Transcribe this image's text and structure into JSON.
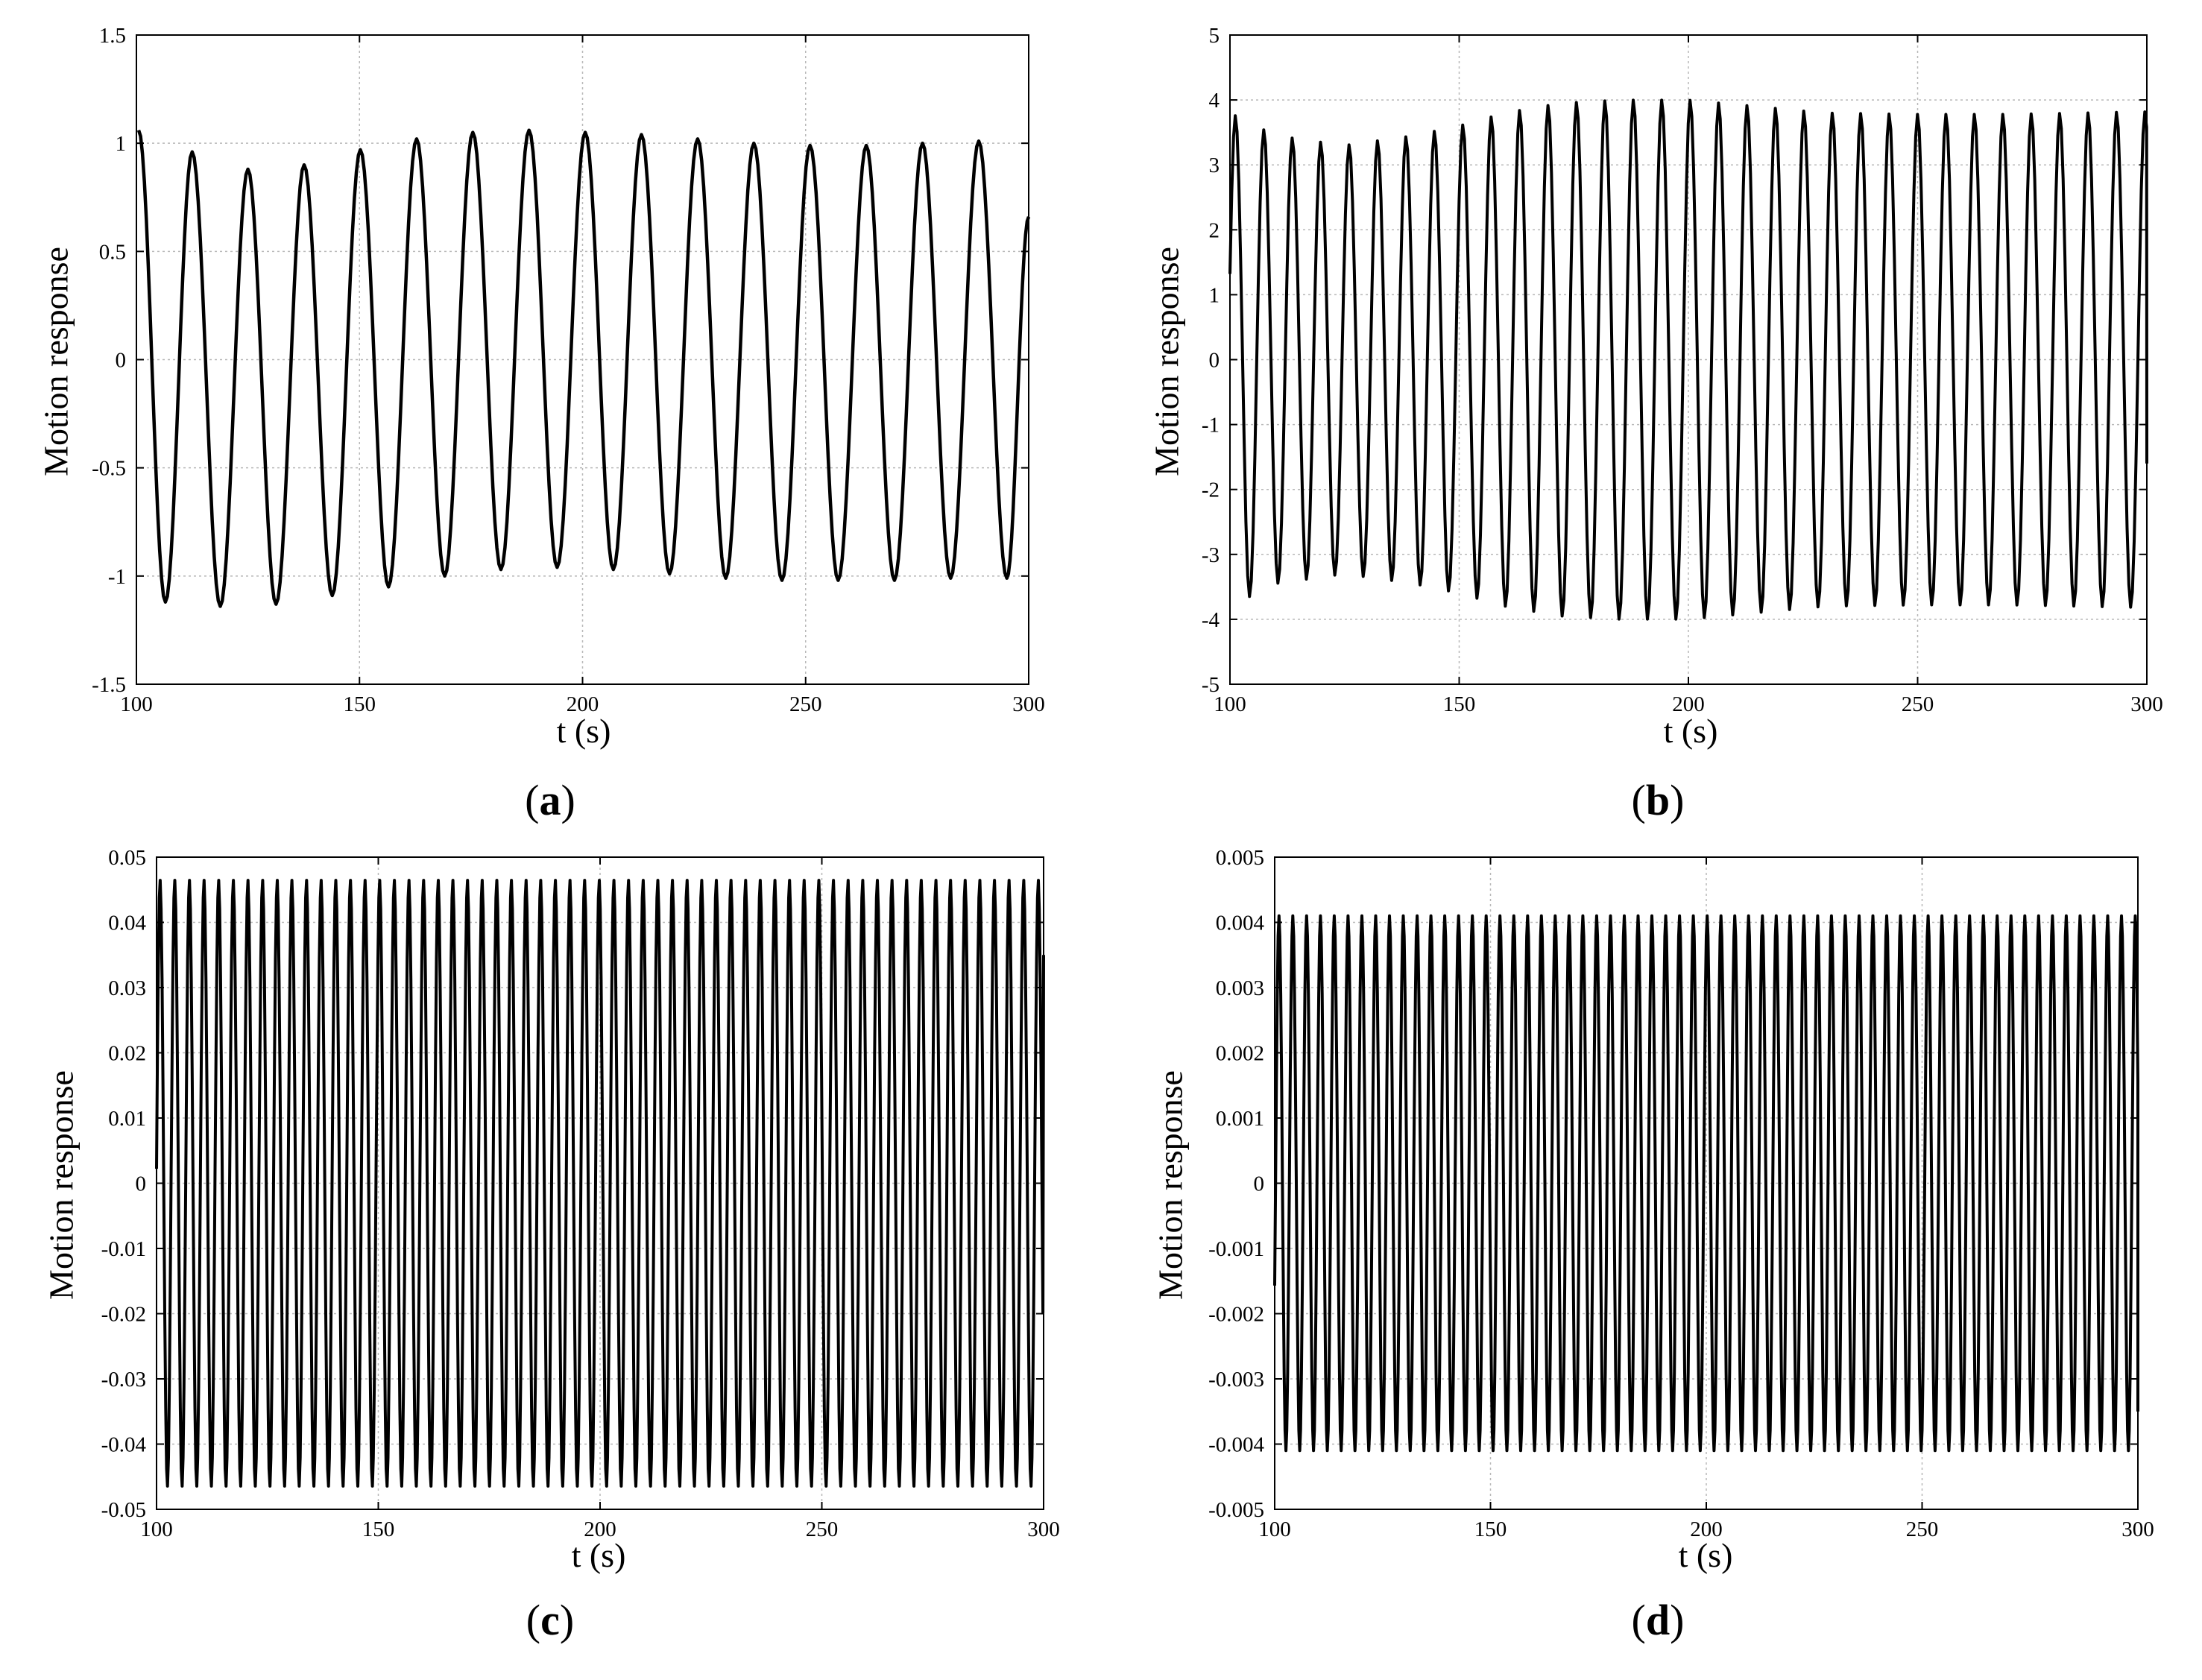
{
  "chart_data": [
    {
      "panel": "a",
      "caption": "a",
      "type": "line",
      "xlabel": "t (s)",
      "ylabel": "Motion response",
      "xlim": [
        100,
        300
      ],
      "ylim": [
        -1.5,
        1.5
      ],
      "xticks": [
        "100",
        "150",
        "200",
        "250",
        "300"
      ],
      "yticks": [
        "1.5",
        "1",
        "0.5",
        "0",
        "-0.5",
        "-1",
        "-1.5"
      ],
      "grid": true,
      "series": [
        {
          "period_s": 12.6,
          "peaks": [
            [
              100.5,
              1.06
            ],
            [
              112.5,
              0.96
            ],
            [
              125,
              0.88
            ],
            [
              137.6,
              0.9
            ],
            [
              150.2,
              0.97
            ],
            [
              162.8,
              1.02
            ],
            [
              175.4,
              1.05
            ],
            [
              188,
              1.06
            ],
            [
              200.6,
              1.05
            ],
            [
              213.2,
              1.04
            ],
            [
              225.8,
              1.02
            ],
            [
              238.4,
              1.0
            ],
            [
              251,
              0.99
            ],
            [
              263.6,
              0.99
            ],
            [
              276.2,
              1.0
            ],
            [
              288.8,
              1.01
            ]
          ],
          "troughs": [
            [
              106.5,
              -1.12
            ],
            [
              118.8,
              -1.14
            ],
            [
              131.3,
              -1.13
            ],
            [
              143.9,
              -1.09
            ],
            [
              156.5,
              -1.05
            ],
            [
              169.1,
              -1.0
            ],
            [
              181.7,
              -0.97
            ],
            [
              194.3,
              -0.96
            ],
            [
              206.9,
              -0.97
            ],
            [
              219.5,
              -0.99
            ],
            [
              232.1,
              -1.01
            ],
            [
              244.7,
              -1.02
            ],
            [
              257.3,
              -1.02
            ],
            [
              269.9,
              -1.02
            ],
            [
              282.5,
              -1.01
            ],
            [
              295.1,
              -1.01
            ]
          ],
          "end": [
            300,
            0.66
          ]
        }
      ]
    },
    {
      "panel": "b",
      "caption": "b",
      "type": "line",
      "xlabel": "t (s)",
      "ylabel": "Motion response",
      "xlim": [
        100,
        300
      ],
      "ylim": [
        -5,
        5
      ],
      "xticks": [
        "100",
        "150",
        "200",
        "250",
        "300"
      ],
      "yticks": [
        "5",
        "4",
        "3",
        "2",
        "1",
        "0",
        "-1",
        "-2",
        "-3",
        "-4",
        "-5"
      ],
      "grid": true,
      "series": [
        {
          "period_s": 6.2,
          "t_start": 101.2,
          "amp_envelope": [
            [
              100,
              3.8
            ],
            [
              110,
              3.45
            ],
            [
              125,
              3.3
            ],
            [
              140,
              3.45
            ],
            [
              150,
              3.6
            ],
            [
              160,
              3.8
            ],
            [
              172,
              3.95
            ],
            [
              185,
              4.0
            ],
            [
              200,
              4.0
            ],
            [
              215,
              3.9
            ],
            [
              230,
              3.8
            ],
            [
              250,
              3.78
            ],
            [
              270,
              3.78
            ],
            [
              300,
              3.82
            ]
          ],
          "end": [
            300,
            -1.6
          ]
        }
      ]
    },
    {
      "panel": "c",
      "caption": "c",
      "type": "line",
      "xlabel": "t (s)",
      "ylabel": "Motion response",
      "xlim": [
        100,
        300
      ],
      "ylim": [
        -0.05,
        0.05
      ],
      "xticks": [
        "100",
        "150",
        "200",
        "250",
        "300"
      ],
      "yticks": [
        "0.05",
        "0.04",
        "0.03",
        "0.02",
        "0.01",
        "0",
        "-0.01",
        "-0.02",
        "-0.03",
        "-0.04",
        "-0.05"
      ],
      "grid": true,
      "series": [
        {
          "period_s": 3.3,
          "amplitude": 0.0465,
          "t_start": 100.8,
          "end": [
            300,
            0.035
          ]
        }
      ]
    },
    {
      "panel": "d",
      "caption": "d",
      "type": "line",
      "xlabel": "t (s)",
      "ylabel": "Motion response",
      "xlim": [
        100,
        300
      ],
      "ylim": [
        -0.005,
        0.005
      ],
      "xticks": [
        "100",
        "150",
        "200",
        "250",
        "300"
      ],
      "yticks": [
        "0.005",
        "0.004",
        "0.003",
        "0.002",
        "0.001",
        "0",
        "-0.001",
        "-0.002",
        "-0.003",
        "-0.004",
        "-0.005"
      ],
      "grid": true,
      "series": [
        {
          "period_s": 3.2,
          "amplitude": 0.0041,
          "t_start": 101.0,
          "end": [
            300,
            -0.0035
          ]
        }
      ]
    }
  ]
}
